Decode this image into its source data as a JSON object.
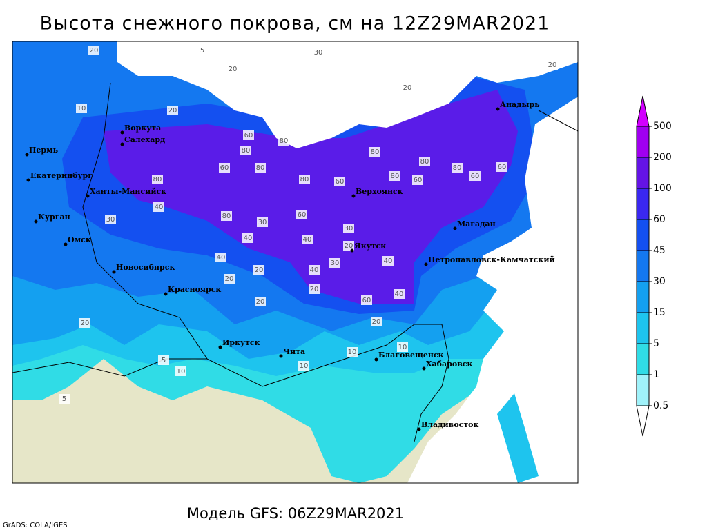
{
  "header": {
    "title": "Высота снежного покрова, см на 12Z29MAR2021"
  },
  "footer": {
    "model": "Модель GFS: 06Z29MAR2021",
    "credit": "GrADS: COLA/IGES"
  },
  "colorbar": {
    "levels": [
      0.5,
      1,
      5,
      15,
      30,
      45,
      60,
      100,
      200,
      500
    ],
    "colors": [
      "#ffffff",
      "#a0f2fa",
      "#30dce6",
      "#1ec4ee",
      "#14a0f0",
      "#1478f0",
      "#1450f0",
      "#3a28f0",
      "#6414e6",
      "#a000f0",
      "#d200ff"
    ]
  },
  "cities": [
    "Анадырь",
    "Воркута",
    "Салехард",
    "Пермь",
    "Екатеринбург",
    "Ханты-Мансийск",
    "Верхоянск",
    "Курган",
    "Магадан",
    "Омск",
    "Якутск",
    "Петропавловск-Камчатский",
    "Новосибирск",
    "Красноярск",
    "Иркутск",
    "Чита",
    "Благовещенск",
    "Хабаровск",
    "Владивосток"
  ],
  "contour_labels": [
    20,
    30,
    5,
    20,
    20,
    20,
    10,
    20,
    60,
    80,
    80,
    80,
    80,
    60,
    80,
    80,
    60,
    80,
    60,
    80,
    80,
    60,
    60,
    40,
    30,
    80,
    30,
    60,
    40,
    30,
    40,
    20,
    40,
    40,
    20,
    20,
    30,
    20,
    40,
    60,
    40,
    20,
    20,
    10,
    10,
    5,
    5,
    10,
    20,
    10
  ]
}
